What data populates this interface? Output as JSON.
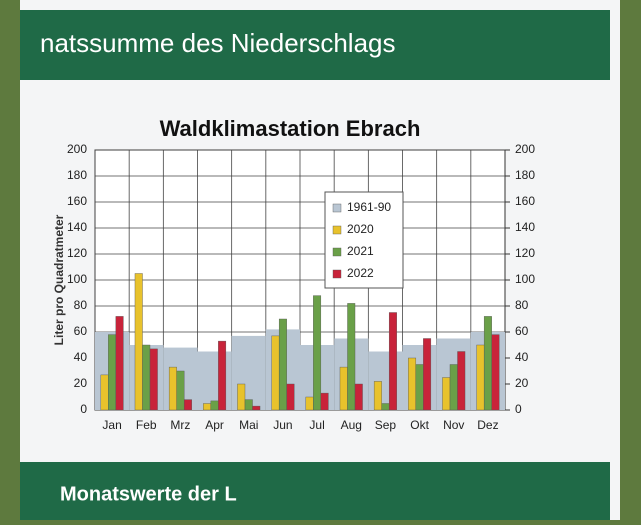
{
  "header": {
    "title": "natssumme des Niederschlags"
  },
  "footer": {
    "title": "Monatswerte der L"
  },
  "chart_data": {
    "type": "bar",
    "title": "Waldklimastation Ebrach",
    "ylabel": "Liter pro Quadratmeter",
    "categories": [
      "Jan",
      "Feb",
      "Mrz",
      "Apr",
      "Mai",
      "Jun",
      "Jul",
      "Aug",
      "Sep",
      "Okt",
      "Nov",
      "Dez"
    ],
    "series": [
      {
        "name": "1961-90",
        "color": "#b9c6d3",
        "values": [
          60,
          50,
          48,
          45,
          57,
          62,
          50,
          55,
          45,
          50,
          55,
          60
        ]
      },
      {
        "name": "2020",
        "color": "#e8c22c",
        "values": [
          27,
          105,
          33,
          5,
          20,
          57,
          10,
          33,
          22,
          40,
          25,
          50
        ]
      },
      {
        "name": "2021",
        "color": "#6aa048",
        "values": [
          58,
          50,
          30,
          7,
          8,
          70,
          88,
          82,
          5,
          35,
          35,
          72
        ]
      },
      {
        "name": "2022",
        "color": "#c8233a",
        "values": [
          72,
          47,
          8,
          53,
          3,
          20,
          13,
          20,
          75,
          55,
          45,
          58
        ]
      }
    ],
    "ylim": [
      0,
      200
    ],
    "yticks": [
      0,
      20,
      40,
      60,
      80,
      100,
      120,
      140,
      160,
      180,
      200
    ],
    "y2lim": [
      0,
      200
    ],
    "y2ticks": [
      0,
      20,
      40,
      60,
      80,
      100,
      120,
      140,
      160,
      180,
      200
    ],
    "grid": true
  }
}
